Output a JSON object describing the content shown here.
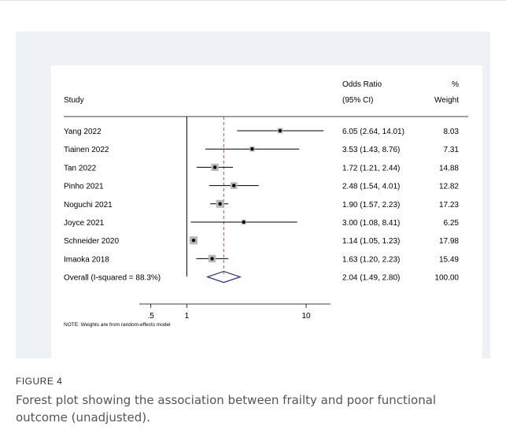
{
  "figure": {
    "label": "FIGURE 4",
    "caption": "Forest plot showing the association between frailty and poor functional outcome (unadjusted)."
  },
  "chart_data": {
    "type": "forest",
    "title": "",
    "header": {
      "study": "Study",
      "or_line1": "Odds Ratio",
      "or_line2": "(95% CI)",
      "weight_line1": "%",
      "weight_line2": "Weight"
    },
    "x_scale": "log",
    "xlim": [
      0.4,
      16
    ],
    "xticks": [
      {
        "value": 0.5,
        "label": ".5"
      },
      {
        "value": 1,
        "label": "1"
      },
      {
        "value": 10,
        "label": "10"
      }
    ],
    "null_line": 1,
    "overall_line": 2.04,
    "studies": [
      {
        "name": "Yang 2022",
        "or": 6.05,
        "lo": 2.64,
        "hi": 14.01,
        "ci_text": "6.05 (2.64, 14.01)",
        "weight": 8.03,
        "weight_text": "8.03"
      },
      {
        "name": "Tiainen 2022",
        "or": 3.53,
        "lo": 1.43,
        "hi": 8.76,
        "ci_text": "3.53 (1.43, 8.76)",
        "weight": 7.31,
        "weight_text": "7.31"
      },
      {
        "name": "Tan 2022",
        "or": 1.72,
        "lo": 1.21,
        "hi": 2.44,
        "ci_text": "1.72 (1.21, 2.44)",
        "weight": 14.88,
        "weight_text": "14.88"
      },
      {
        "name": "Pinho 2021",
        "or": 2.48,
        "lo": 1.54,
        "hi": 4.01,
        "ci_text": "2.48 (1.54, 4.01)",
        "weight": 12.82,
        "weight_text": "12.82"
      },
      {
        "name": "Noguchi 2021",
        "or": 1.9,
        "lo": 1.57,
        "hi": 2.23,
        "ci_text": "1.90 (1.57, 2.23)",
        "weight": 17.23,
        "weight_text": "17.23"
      },
      {
        "name": "Joyce 2021",
        "or": 3.0,
        "lo": 1.08,
        "hi": 8.41,
        "ci_text": "3.00 (1.08, 8.41)",
        "weight": 6.25,
        "weight_text": "6.25"
      },
      {
        "name": "Schneider 2020",
        "or": 1.14,
        "lo": 1.05,
        "hi": 1.23,
        "ci_text": "1.14 (1.05, 1.23)",
        "weight": 17.98,
        "weight_text": "17.98"
      },
      {
        "name": "Imaoka 2018",
        "or": 1.63,
        "lo": 1.2,
        "hi": 2.23,
        "ci_text": "1.63 (1.20, 2.23)",
        "weight": 15.49,
        "weight_text": "15.49"
      }
    ],
    "overall": {
      "name": "Overall  (I-squared = 88.3%)",
      "or": 2.04,
      "lo": 1.49,
      "hi": 2.8,
      "ci_text": "2.04 (1.49, 2.80)",
      "weight_text": "100.00"
    },
    "note": "NOTE: Weights are from random-effects model",
    "colors": {
      "panel_background": "#eef2f7",
      "diamond": "#1f2f8f",
      "ci_line": "#000000",
      "weight_box": "#b8b8b8",
      "overall_line": "#c44a4a"
    }
  }
}
